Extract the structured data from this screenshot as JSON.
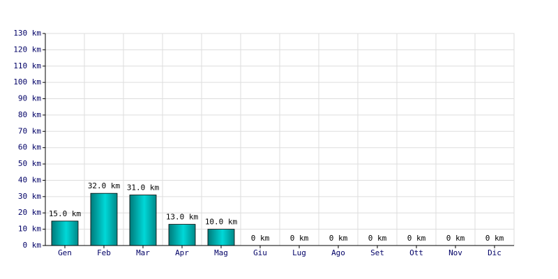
{
  "chart_data": {
    "type": "bar",
    "categories": [
      "Gen",
      "Feb",
      "Mar",
      "Apr",
      "Mag",
      "Giu",
      "Lug",
      "Ago",
      "Set",
      "Ott",
      "Nov",
      "Dic"
    ],
    "values": [
      15,
      32,
      31,
      13,
      10,
      0,
      0,
      0,
      0,
      0,
      0,
      0
    ],
    "value_labels": [
      "15.0 km",
      "32.0 km",
      "31.0 km",
      "13.0 km",
      "10.0 km",
      "0 km",
      "0 km",
      "0 km",
      "0 km",
      "0 km",
      "0 km",
      "0 km"
    ],
    "color": "#00d8d8",
    "ylim": [
      0,
      130
    ],
    "yticks": [
      {
        "value": 0,
        "label": "0 km"
      },
      {
        "value": 10,
        "label": "10 km"
      },
      {
        "value": 20,
        "label": "20 km"
      },
      {
        "value": 30,
        "label": "30 km"
      },
      {
        "value": 40,
        "label": "40 km"
      },
      {
        "value": 50,
        "label": "50 km"
      },
      {
        "value": 60,
        "label": "60 km"
      },
      {
        "value": 70,
        "label": "70 km"
      },
      {
        "value": 80,
        "label": "80 km"
      },
      {
        "value": 90,
        "label": "90 km"
      },
      {
        "value": 100,
        "label": "100 km"
      },
      {
        "value": 110,
        "label": "110 km"
      },
      {
        "value": 120,
        "label": "120 km"
      },
      {
        "value": 130,
        "label": "130 km"
      }
    ],
    "grid": true
  }
}
